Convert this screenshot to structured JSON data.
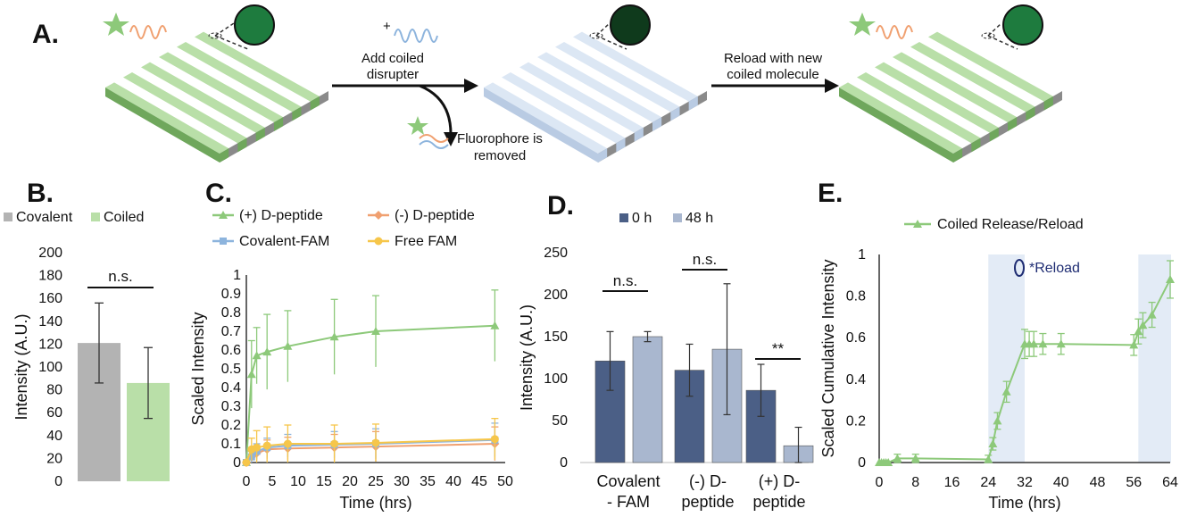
{
  "colors": {
    "green": "#8dc97a",
    "green_light": "#b9dfa8",
    "green_dark": "#6fa75c",
    "gray": "#b3b3b3",
    "orange": "#f0a070",
    "blue": "#8db4dd",
    "yellow": "#f6c64a",
    "navy": "#4b5f86",
    "slate": "#a9b7cf",
    "shade": "#e3ebf6",
    "reload": "#1f2d73"
  },
  "panel_a": {
    "letter": "A.",
    "step1_label": [
      "Add coiled",
      "disrupter"
    ],
    "plus_sign": "+",
    "removed_label": [
      "Fluorophore is",
      "removed"
    ],
    "step2_label": [
      "Reload with new",
      "coiled molecule"
    ],
    "icons": [
      "fluorophore-star-icon",
      "coiled-peptide-icon",
      "magnified-view-icon"
    ]
  },
  "chart_data": [
    {
      "panel": "B.",
      "type": "bar",
      "categories": [
        "Covalent",
        "Coiled"
      ],
      "values": [
        121,
        86
      ],
      "errors": [
        35,
        31
      ],
      "colors": [
        "#b3b3b3",
        "#b9dfa8"
      ],
      "legend": [
        "Covalent",
        "Coiled"
      ],
      "ylabel": "Intensity (A.U.)",
      "ylim": [
        0,
        200
      ],
      "yticks": [
        "0",
        "20",
        "40",
        "60",
        "80",
        "100",
        "120",
        "140",
        "160",
        "180",
        "200"
      ],
      "annotation": "n.s."
    },
    {
      "panel": "C.",
      "type": "line",
      "xlabel": "Time (hrs)",
      "ylabel": "Scaled Intensity",
      "xlim": [
        0,
        50
      ],
      "ylim": [
        0,
        1
      ],
      "xticks": [
        "0",
        "5",
        "10",
        "15",
        "20",
        "25",
        "30",
        "35",
        "40",
        "45",
        "50"
      ],
      "yticks": [
        "0",
        "0.1",
        "0.2",
        "0.3",
        "0.4",
        "0.5",
        "0.6",
        "0.7",
        "0.8",
        "0.9",
        "1"
      ],
      "legend_placement": "top",
      "series": [
        {
          "name": "(+) D-peptide",
          "color": "#8dc97a",
          "marker": "triangle",
          "x": [
            0,
            1,
            2,
            4,
            8,
            17,
            25,
            48
          ],
          "y": [
            0,
            0.47,
            0.57,
            0.59,
            0.62,
            0.67,
            0.7,
            0.73
          ],
          "err": [
            0,
            0.18,
            0.15,
            0.2,
            0.19,
            0.2,
            0.19,
            0.19
          ]
        },
        {
          "name": "(-) D-peptide",
          "color": "#f0a070",
          "marker": "diamond",
          "x": [
            0,
            1,
            2,
            4,
            8,
            17,
            25,
            48
          ],
          "y": [
            0,
            0.03,
            0.05,
            0.07,
            0.075,
            0.08,
            0.085,
            0.1
          ],
          "err": [
            0,
            0.03,
            0.04,
            0.05,
            0.06,
            0.07,
            0.08,
            0.09
          ]
        },
        {
          "name": "Covalent-FAM",
          "color": "#8db4dd",
          "marker": "square",
          "x": [
            0,
            1,
            2,
            4,
            8,
            17,
            25,
            48
          ],
          "y": [
            0,
            0.03,
            0.06,
            0.08,
            0.09,
            0.095,
            0.1,
            0.12
          ],
          "err": [
            0,
            0.03,
            0.04,
            0.05,
            0.06,
            0.07,
            0.08,
            0.09
          ]
        },
        {
          "name": "Free FAM",
          "color": "#f6c64a",
          "marker": "circle",
          "x": [
            0,
            1,
            2,
            4,
            8,
            17,
            25,
            48
          ],
          "y": [
            0,
            0.07,
            0.08,
            0.09,
            0.1,
            0.1,
            0.105,
            0.125
          ],
          "err": [
            0,
            0.06,
            0.09,
            0.1,
            0.1,
            0.1,
            0.1,
            0.11
          ]
        }
      ]
    },
    {
      "panel": "D.",
      "type": "bar",
      "categories": [
        [
          "Covalent",
          "- FAM"
        ],
        [
          "(-) D-",
          "peptide"
        ],
        [
          "(+) D-",
          "peptide"
        ]
      ],
      "series": [
        {
          "name": "0 h",
          "color": "#4b5f86",
          "values": [
            121,
            110,
            86
          ],
          "errors": [
            35,
            31,
            31
          ]
        },
        {
          "name": "48 h",
          "color": "#a9b7cf",
          "values": [
            150,
            135,
            20
          ],
          "errors": [
            6,
            78,
            22
          ]
        }
      ],
      "ylabel": "Intensity (A.U.)",
      "ylim": [
        0,
        250
      ],
      "yticks": [
        "0",
        "50",
        "100",
        "150",
        "200",
        "250"
      ],
      "annotations": [
        "n.s.",
        "n.s.",
        "**"
      ]
    },
    {
      "panel": "E.",
      "type": "line",
      "xlabel": "Time (hrs)",
      "ylabel": "Scaled Cumulative Intensity",
      "xlim": [
        0,
        64
      ],
      "ylim": [
        0,
        1
      ],
      "xticks": [
        "0",
        "8",
        "16",
        "24",
        "32",
        "40",
        "48",
        "56",
        "64"
      ],
      "yticks": [
        "0",
        "0.2",
        "0.4",
        "0.6",
        "0.8",
        "1"
      ],
      "shaded_ranges": [
        [
          24,
          32
        ],
        [
          57,
          65
        ]
      ],
      "reload_label": "*Reload",
      "series": [
        {
          "name": "Coiled Release/Reload",
          "color": "#8dc97a",
          "marker": "triangle",
          "x": [
            0,
            0.5,
            1,
            1.5,
            2,
            4,
            8,
            24,
            25,
            26,
            28,
            32,
            33,
            34,
            36,
            40,
            56,
            57,
            58,
            60,
            64
          ],
          "y": [
            0,
            0,
            0,
            0,
            0,
            0.02,
            0.02,
            0.015,
            0.09,
            0.2,
            0.34,
            0.57,
            0.57,
            0.57,
            0.57,
            0.57,
            0.565,
            0.63,
            0.66,
            0.71,
            0.88
          ],
          "err": [
            0,
            0,
            0,
            0,
            0,
            0.02,
            0.02,
            0.02,
            0.03,
            0.04,
            0.05,
            0.07,
            0.06,
            0.06,
            0.05,
            0.05,
            0.05,
            0.06,
            0.06,
            0.06,
            0.09
          ]
        }
      ]
    }
  ]
}
